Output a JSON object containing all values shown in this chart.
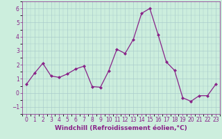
{
  "x": [
    0,
    1,
    2,
    3,
    4,
    5,
    6,
    7,
    8,
    9,
    10,
    11,
    12,
    13,
    14,
    15,
    16,
    17,
    18,
    19,
    20,
    21,
    22,
    23
  ],
  "y": [
    0.6,
    1.4,
    2.1,
    1.2,
    1.1,
    1.35,
    1.7,
    1.9,
    0.45,
    0.4,
    1.55,
    3.1,
    2.8,
    3.8,
    5.65,
    6.0,
    4.15,
    2.2,
    1.6,
    -0.35,
    -0.6,
    -0.2,
    -0.2,
    0.6
  ],
  "line_color": "#882288",
  "marker": "D",
  "markersize": 2.0,
  "linewidth": 0.9,
  "background_color": "#cceedd",
  "grid_color": "#aacccc",
  "xlabel": "Windchill (Refroidissement éolien,°C)",
  "xlabel_fontsize": 6.5,
  "tick_fontsize": 5.5,
  "ylim": [
    -1.5,
    6.5
  ],
  "xlim": [
    -0.5,
    23.5
  ],
  "yticks": [
    -1,
    0,
    1,
    2,
    3,
    4,
    5,
    6
  ],
  "xticks": [
    0,
    1,
    2,
    3,
    4,
    5,
    6,
    7,
    8,
    9,
    10,
    11,
    12,
    13,
    14,
    15,
    16,
    17,
    18,
    19,
    20,
    21,
    22,
    23
  ]
}
